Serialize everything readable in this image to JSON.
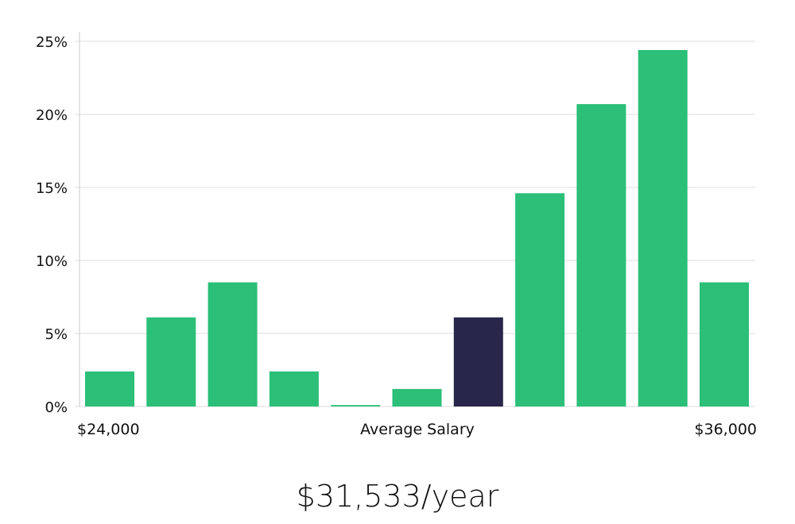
{
  "chart_data": {
    "type": "bar",
    "title": "",
    "xlabel": "Average Salary",
    "ylabel": "",
    "x_range_labels": {
      "start": "$24,000",
      "end": "$36,000"
    },
    "y_ticks": [
      "0%",
      "5%",
      "10%",
      "15%",
      "20%",
      "25%"
    ],
    "ylim": [
      0,
      25
    ],
    "grid": true,
    "values": [
      2.4,
      6.1,
      8.5,
      2.4,
      0.1,
      1.2,
      6.1,
      14.6,
      20.7,
      24.4,
      8.5
    ],
    "highlight_index": 6,
    "colors": {
      "bar": "#2bbf78",
      "highlight": "#28264a",
      "grid": "#dcdcdc",
      "axis": "#c8c8c8"
    }
  },
  "salary_summary": "$31,533/year"
}
